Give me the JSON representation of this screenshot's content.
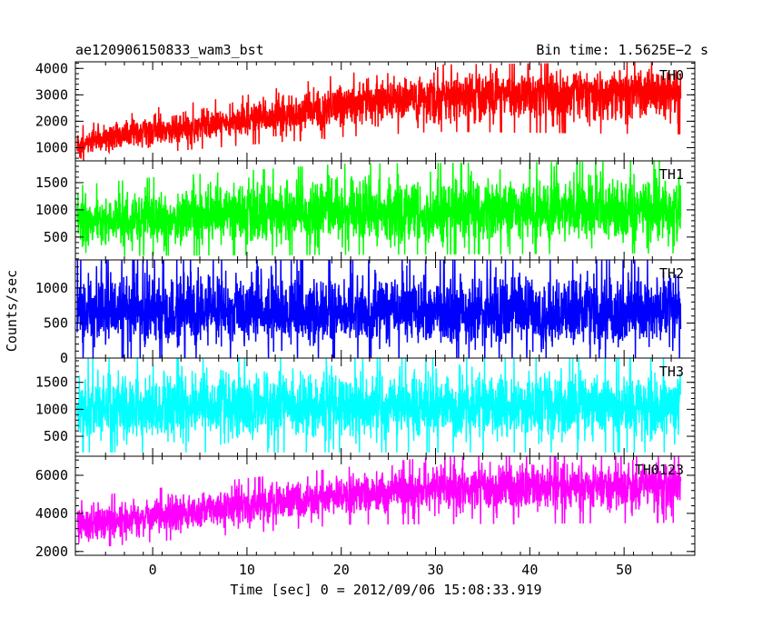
{
  "header": {
    "left_title": "ae120906150833_wam3_bst",
    "right_title": "Bin time: 1.5625E−2 s"
  },
  "axes": {
    "xlabel": "Time [sec] 0 = 2012/09/06 15:08:33.919",
    "ylabel": "Counts/sec"
  },
  "chart_data": {
    "type": "line",
    "x_range": [
      -8.2,
      57.5
    ],
    "x_ticks": [
      0,
      10,
      20,
      30,
      40,
      50
    ],
    "x_tick_labels": [
      "0",
      "10",
      "20",
      "30",
      "40",
      "50"
    ],
    "data_x_range": [
      -8.0,
      56.0
    ],
    "bin_time_s": 0.015625,
    "panels": [
      {
        "name": "TH0",
        "color": "#ff0000",
        "ylim": [
          500,
          4250
        ],
        "y_ticks": [
          1000,
          2000,
          3000,
          4000
        ],
        "y_tick_labels": [
          "1000",
          "2000",
          "3000",
          "4000"
        ],
        "trend": [
          [
            -8,
            1150
          ],
          [
            0,
            1650
          ],
          [
            10,
            2050
          ],
          [
            20,
            2550
          ],
          [
            30,
            2950
          ],
          [
            40,
            3100
          ],
          [
            56,
            3250
          ]
        ],
        "envelope_low": [
          [
            -8,
            400
          ],
          [
            0,
            800
          ],
          [
            20,
            1400
          ],
          [
            30,
            1600
          ],
          [
            56,
            1500
          ]
        ],
        "envelope_high": [
          [
            -8,
            1800
          ],
          [
            0,
            2500
          ],
          [
            10,
            3000
          ],
          [
            20,
            3800
          ],
          [
            30,
            4150
          ],
          [
            56,
            4250
          ]
        ]
      },
      {
        "name": "TH1",
        "color": "#00ff00",
        "ylim": [
          80,
          1900
        ],
        "y_ticks": [
          500,
          1000,
          1500
        ],
        "y_tick_labels": [
          "500",
          "1000",
          "1500"
        ],
        "trend": [
          [
            -8,
            750
          ],
          [
            0,
            850
          ],
          [
            10,
            920
          ],
          [
            20,
            950
          ],
          [
            30,
            970
          ],
          [
            56,
            990
          ]
        ],
        "envelope_low": [
          [
            -8,
            150
          ],
          [
            56,
            200
          ]
        ],
        "envelope_high": [
          [
            -8,
            1450
          ],
          [
            0,
            1600
          ],
          [
            20,
            1850
          ],
          [
            56,
            1900
          ]
        ]
      },
      {
        "name": "TH2",
        "color": "#0000ff",
        "ylim": [
          0,
          1400
        ],
        "y_ticks": [
          0,
          500,
          1000
        ],
        "y_tick_labels": [
          "0",
          "500",
          "1000"
        ],
        "trend": [
          [
            -8,
            650
          ],
          [
            56,
            650
          ]
        ],
        "envelope_low": [
          [
            -8,
            0
          ],
          [
            56,
            0
          ]
        ],
        "envelope_high": [
          [
            -8,
            1400
          ],
          [
            56,
            1400
          ]
        ]
      },
      {
        "name": "TH3",
        "color": "#00ffff",
        "ylim": [
          130,
          1950
        ],
        "y_ticks": [
          500,
          1000,
          1500
        ],
        "y_tick_labels": [
          "500",
          "1000",
          "1500"
        ],
        "trend": [
          [
            -8,
            1050
          ],
          [
            56,
            1050
          ]
        ],
        "envelope_low": [
          [
            -8,
            200
          ],
          [
            56,
            200
          ]
        ],
        "envelope_high": [
          [
            -8,
            1950
          ],
          [
            56,
            1950
          ]
        ]
      },
      {
        "name": "TH0123",
        "color": "#ff00ff",
        "ylim": [
          1800,
          7000
        ],
        "y_ticks": [
          2000,
          4000,
          6000
        ],
        "y_tick_labels": [
          "2000",
          "4000",
          "6000"
        ],
        "trend": [
          [
            -8,
            3400
          ],
          [
            0,
            3900
          ],
          [
            10,
            4400
          ],
          [
            20,
            5000
          ],
          [
            30,
            5300
          ],
          [
            40,
            5400
          ],
          [
            56,
            5500
          ]
        ],
        "envelope_low": [
          [
            -8,
            2100
          ],
          [
            0,
            2500
          ],
          [
            20,
            3400
          ],
          [
            56,
            3500
          ]
        ],
        "envelope_high": [
          [
            -8,
            4800
          ],
          [
            0,
            5300
          ],
          [
            20,
            6400
          ],
          [
            30,
            7000
          ],
          [
            56,
            7000
          ]
        ]
      }
    ]
  }
}
